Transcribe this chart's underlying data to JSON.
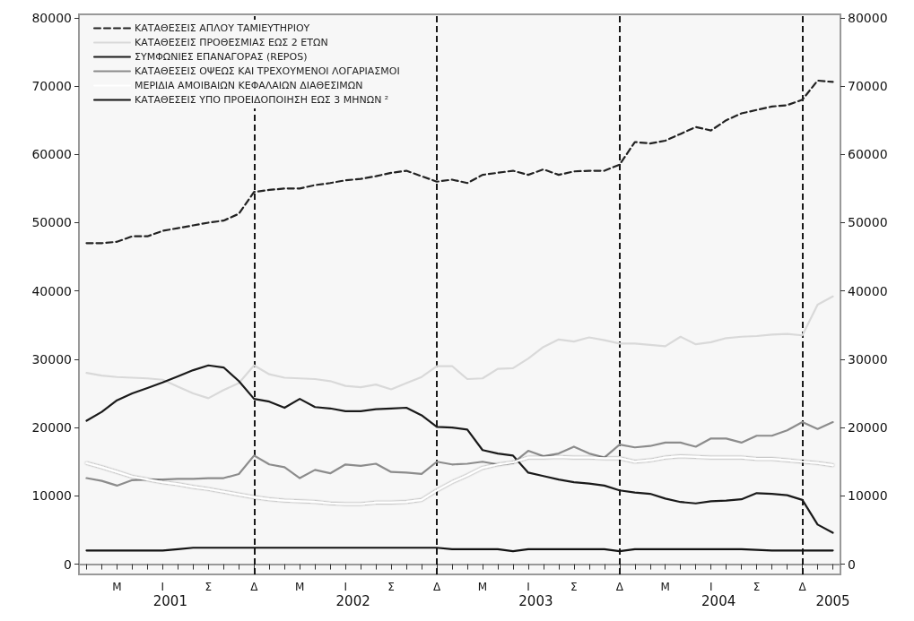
{
  "chart_data": {
    "type": "line",
    "categories": [
      null,
      null,
      "Μ",
      null,
      null,
      "Ι",
      null,
      null,
      "Σ",
      null,
      null,
      "Δ",
      null,
      null,
      "Μ",
      null,
      null,
      "Ι",
      null,
      null,
      "Σ",
      null,
      null,
      "Δ",
      null,
      null,
      "Μ",
      null,
      null,
      "Ι",
      null,
      null,
      "Σ",
      null,
      null,
      "Δ",
      null,
      null,
      "Μ",
      null,
      null,
      "Ι",
      null,
      null,
      "Σ",
      null,
      null,
      "Δ",
      null,
      null
    ],
    "annotations": [
      "2001",
      "2002",
      "2003",
      "2004",
      "2005"
    ],
    "series": [
      {
        "name": "ΚΑΤΑΘΕΣΕΙΣ ΑΠΛΟΥ ΤΑΜΙΕΥΤΗΡΙΟΥ",
        "color": "#222222",
        "line_style": "dashed",
        "values": [
          47000,
          47000,
          47200,
          48000,
          48000,
          48800,
          49200,
          49600,
          50000,
          50300,
          51300,
          54500,
          54800,
          55000,
          55000,
          55500,
          55800,
          56200,
          56400,
          56800,
          57300,
          57600,
          56800,
          56000,
          56300,
          55800,
          57000,
          57300,
          57600,
          57000,
          57800,
          57000,
          57500,
          57600,
          57600,
          58500,
          61800,
          61600,
          62000,
          63000,
          64000,
          63500,
          65000,
          66000,
          66500,
          67000,
          67200,
          68000,
          70800,
          70600
        ]
      },
      {
        "name": "ΚΑΤΑΘΕΣΕΙΣ ΠΡΟΘΕΣΜΙΑΣ ΕΩΣ 2 ΕΤΩΝ",
        "color": "#d9d9d9",
        "values": [
          28000,
          27600,
          27400,
          27300,
          27200,
          27000,
          26000,
          25000,
          24300,
          25500,
          26500,
          29100,
          27800,
          27300,
          27200,
          27100,
          26800,
          26100,
          25900,
          26300,
          25600,
          26500,
          27400,
          29000,
          29000,
          27100,
          27200,
          28600,
          28700,
          30100,
          31800,
          32900,
          32600,
          33200,
          32800,
          32300,
          32300,
          32100,
          31900,
          33300,
          32200,
          32500,
          33100,
          33300,
          33400,
          33600,
          33700,
          33500,
          38000,
          39200
        ]
      },
      {
        "name": "ΣΥΜΦΩΝΙΕΣ ΕΠΑΝΑΓΟΡΑΣ (REPOS)",
        "color": "#1a1a1a",
        "values": [
          21000,
          22300,
          24000,
          25000,
          25800,
          26600,
          27500,
          28400,
          29100,
          28800,
          26800,
          24200,
          23800,
          22900,
          24200,
          23000,
          22800,
          22400,
          22400,
          22700,
          22800,
          22900,
          21800,
          20100,
          20000,
          19700,
          16700,
          16200,
          15900,
          13400,
          12900,
          12400,
          12000,
          11800,
          11500,
          10800,
          10500,
          10300,
          9600,
          9100,
          8900,
          9200,
          9300,
          9500,
          10400,
          10300,
          10100,
          9400,
          5800,
          4600
        ]
      },
      {
        "name": "ΚΑΤΑΘΕΣΕΙΣ ΟΨΕΩΣ ΚΑΙ ΤΡΕΧΟΥΜΕΝΟΙ ΛΟΓΑΡΙΑΣΜΟΙ",
        "color": "#8c8c8c",
        "values": [
          12600,
          12200,
          11500,
          12300,
          12400,
          12400,
          12500,
          12500,
          12600,
          12600,
          13200,
          15900,
          14600,
          14200,
          12600,
          13800,
          13300,
          14600,
          14400,
          14700,
          13500,
          13400,
          13200,
          15000,
          14600,
          14700,
          15000,
          14600,
          14800,
          16600,
          15800,
          16200,
          17200,
          16200,
          15600,
          17500,
          17100,
          17300,
          17800,
          17800,
          17200,
          18400,
          18400,
          17800,
          18800,
          18800,
          19600,
          20800,
          19800,
          20800
        ]
      },
      {
        "name": "ΜΕΡΙΔΙΑ ΑΜΟΙΒΑΙΩΝ ΚΕΦΑΛΑΙΩΝ ΔΙΑΘΕΣΙΜΩΝ",
        "color": "#ffffff",
        "values": [
          14800,
          14200,
          13500,
          12800,
          12400,
          12000,
          11700,
          11300,
          11000,
          10600,
          10200,
          9800,
          9500,
          9300,
          9200,
          9100,
          8900,
          8800,
          8800,
          9000,
          9000,
          9100,
          9400,
          10800,
          12000,
          13000,
          14100,
          14600,
          14900,
          15600,
          15600,
          15700,
          15600,
          15600,
          15500,
          15500,
          15000,
          15200,
          15600,
          15800,
          15700,
          15600,
          15600,
          15600,
          15400,
          15400,
          15200,
          15000,
          14800,
          14500
        ]
      },
      {
        "name": "ΚΑΤΑΘΕΣΕΙΣ ΥΠΟ ΠΡΟΕΙΔΟΠΟΙΗΣΗ ΕΩΣ 3 ΜΗΝΩΝ ²",
        "color": "#111111",
        "values": [
          2000,
          2000,
          2000,
          2000,
          2000,
          2000,
          2200,
          2400,
          2400,
          2400,
          2400,
          2400,
          2400,
          2400,
          2400,
          2400,
          2400,
          2400,
          2400,
          2400,
          2400,
          2400,
          2400,
          2400,
          2200,
          2200,
          2200,
          2200,
          1900,
          2200,
          2200,
          2200,
          2200,
          2200,
          2200,
          1900,
          2200,
          2200,
          2200,
          2200,
          2200,
          2200,
          2200,
          2200,
          2100,
          2000,
          2000,
          2000,
          2000,
          2000
        ]
      }
    ],
    "ylim": [
      -1500,
      80500
    ],
    "yticks": [
      0,
      10000,
      20000,
      30000,
      40000,
      50000,
      60000,
      70000,
      80000
    ],
    "y2lim": [
      -1500,
      80500
    ],
    "y2ticks": [
      0,
      10000,
      20000,
      30000,
      40000,
      50000,
      60000,
      70000,
      80000
    ],
    "grid": "x",
    "legend": "top left",
    "marker": "none",
    "line_style": "solid"
  }
}
